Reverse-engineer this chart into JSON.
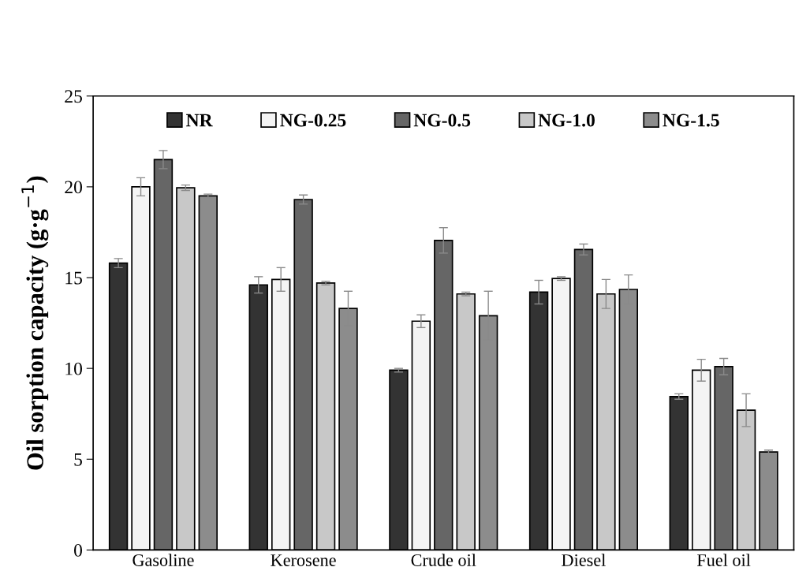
{
  "chart_data": {
    "type": "bar",
    "ylabel": "Oil sorption capacity (g·g$^{−1}$)",
    "categories": [
      "Gasoline",
      "Kerosene",
      "Crude oil",
      "Diesel",
      "Fuel oil"
    ],
    "series": [
      {
        "name": "NR",
        "color": "#333333",
        "values": [
          15.8,
          14.6,
          9.9,
          14.2,
          8.45
        ],
        "errors": [
          0.25,
          0.45,
          0.1,
          0.65,
          0.15
        ]
      },
      {
        "name": "NG-0.25",
        "color": "#f4f4f4",
        "values": [
          20.0,
          14.9,
          12.6,
          14.95,
          9.9
        ],
        "errors": [
          0.5,
          0.65,
          0.35,
          0.1,
          0.6
        ]
      },
      {
        "name": "NG-0.5",
        "color": "#666666",
        "values": [
          21.5,
          19.3,
          17.05,
          16.55,
          10.1
        ],
        "errors": [
          0.5,
          0.25,
          0.7,
          0.3,
          0.45
        ]
      },
      {
        "name": "NG-1.0",
        "color": "#c8c8c8",
        "values": [
          19.95,
          14.7,
          14.1,
          14.1,
          7.7
        ],
        "errors": [
          0.15,
          0.1,
          0.1,
          0.8,
          0.9
        ]
      },
      {
        "name": "NG-1.5",
        "color": "#8c8c8c",
        "values": [
          19.5,
          13.3,
          12.9,
          14.35,
          5.4
        ],
        "errors": [
          0.1,
          0.95,
          1.35,
          0.8,
          0.1
        ]
      }
    ],
    "ylim": [
      0,
      25
    ],
    "yticks": [
      0,
      5,
      10,
      15,
      20,
      25
    ],
    "grid": false,
    "legend": "top"
  }
}
